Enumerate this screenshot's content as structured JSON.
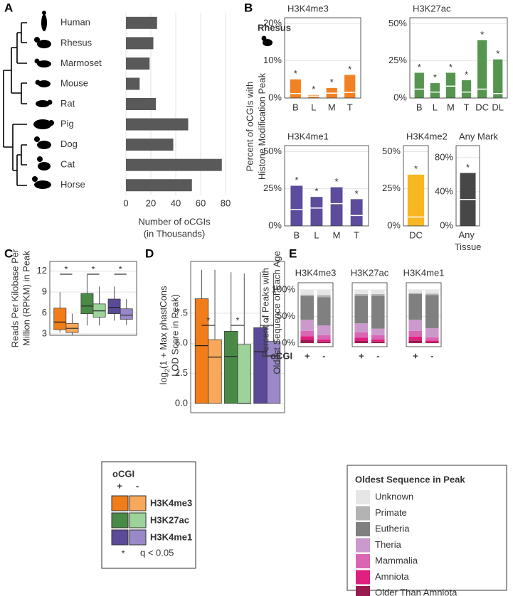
{
  "chart_data": [
    {
      "type": "bar",
      "panel": "A",
      "orientation": "horizontal",
      "categories": [
        "Human",
        "Rhesus",
        "Marmoset",
        "Mouse",
        "Rat",
        "Pig",
        "Dog",
        "Cat",
        "Horse"
      ],
      "values": [
        25,
        22,
        19,
        11,
        24,
        50,
        38,
        77,
        53
      ],
      "color": "#595959",
      "xlim": [
        -4,
        84
      ],
      "xticks": [
        0,
        20,
        40,
        60,
        80
      ],
      "grid": true,
      "x_label": [
        "Number of oCGIs",
        "(in Thousands)"
      ]
    },
    {
      "type": "bar",
      "panel": "B",
      "annotation": "Rhesus",
      "y_label": [
        "Percent of oCGIs with",
        "Histone Modification Peak"
      ],
      "title": "H3K4me3",
      "color": "#f28123",
      "categories": [
        "B",
        "L",
        "M",
        "T"
      ],
      "values": [
        5,
        0.8,
        2.7,
        6.2
      ],
      "expected": [
        1.2,
        0.5,
        1.3,
        1.5
      ],
      "significance": [
        "*",
        "*",
        "*",
        "*"
      ],
      "ylim": [
        0,
        21.5
      ],
      "yticks": [
        {
          "value": 0,
          "label": "0%"
        },
        {
          "value": 10,
          "label": "10%"
        },
        {
          "value": 20,
          "label": "20%"
        }
      ],
      "grid": true
    },
    {
      "type": "bar",
      "title": "H3K27ac",
      "color": "#55954f",
      "categories": [
        "B",
        "L",
        "M",
        "T",
        "DC",
        "DL"
      ],
      "values": [
        17,
        10,
        17,
        12,
        39,
        26
      ],
      "expected": [
        6,
        4,
        8,
        4,
        6,
        3
      ],
      "significance": [
        "*",
        "*",
        "*",
        "*",
        "*",
        "*"
      ],
      "ylim": [
        0,
        54
      ],
      "yticks": [
        {
          "value": 0,
          "label": "0%"
        },
        {
          "value": 25,
          "label": "25%"
        },
        {
          "value": 50,
          "label": "50%"
        }
      ],
      "grid": true
    },
    {
      "type": "bar",
      "title": "H3K4me1",
      "color": "#5d4c9c",
      "categories": [
        "B",
        "L",
        "M",
        "T"
      ],
      "values": [
        27,
        19.5,
        26,
        18
      ],
      "expected": [
        11,
        12,
        15,
        7
      ],
      "significance": [
        "*",
        "*",
        "*",
        "*"
      ],
      "ylim": [
        0,
        54
      ],
      "yticks": [
        {
          "value": 0,
          "label": "0%"
        },
        {
          "value": 25,
          "label": "25%"
        },
        {
          "value": 50,
          "label": "50%"
        }
      ],
      "grid": true
    },
    {
      "type": "bar",
      "title": "H3K4me2",
      "color": "#f7b722",
      "categories": [
        "DC"
      ],
      "values": [
        34.5
      ],
      "expected": [
        6
      ],
      "significance": [
        "*"
      ],
      "ylim": [
        0,
        54
      ],
      "yticks": [
        {
          "value": 0,
          "label": "0%"
        },
        {
          "value": 25,
          "label": "25%"
        },
        {
          "value": 50,
          "label": "50%"
        }
      ],
      "grid": true
    },
    {
      "type": "bar",
      "title": "Any Mark",
      "color": "#474747",
      "categories": [
        "Any Tissue"
      ],
      "values": [
        62
      ],
      "expected": [
        31
      ],
      "significance": [
        "*"
      ],
      "ylim": [
        0,
        94
      ],
      "yticks": [
        {
          "value": 0,
          "label": "0%"
        },
        {
          "value": 40,
          "label": "40%"
        },
        {
          "value": 80,
          "label": "80%"
        }
      ],
      "grid": true
    },
    {
      "type": "box",
      "panel": "C",
      "y_label": [
        "Reads Per Kilobase Per",
        "Million (RPKM) in Peak"
      ],
      "ylim": [
        2.8,
        13.4
      ],
      "yticks": [
        3,
        6,
        9,
        12
      ],
      "grid": true,
      "boxes": [
        {
          "color": "#f07c1a",
          "low": 3.2,
          "q1": 3.6,
          "median": 4.7,
          "q3": 6.7,
          "high": 9
        },
        {
          "color": "#f7a85a",
          "low": 2.8,
          "q1": 3.2,
          "median": 3.8,
          "q3": 4.5,
          "high": 5.9
        },
        {
          "color": "#4a8a47",
          "low": 4.2,
          "q1": 5.9,
          "median": 7.0,
          "q3": 8.8,
          "high": 11.5
        },
        {
          "color": "#9dd39a",
          "low": 4.2,
          "q1": 5.4,
          "median": 6.3,
          "q3": 7.3,
          "high": 9.8
        },
        {
          "color": "#5b4a97",
          "low": 4.9,
          "q1": 5.9,
          "median": 6.8,
          "q3": 8.0,
          "high": 9.8
        },
        {
          "color": "#9a88c8",
          "low": 4.3,
          "q1": 5.1,
          "median": 5.7,
          "q3": 6.6,
          "high": 8.0
        }
      ],
      "significance": [
        "*",
        "*",
        "*"
      ],
      "legend": {
        "title": "oCGI",
        "levels": [
          "+",
          "-"
        ],
        "entries": [
          {
            "name": "H3K4me3",
            "colors": [
              "#f07c1a",
              "#f7a85a"
            ]
          },
          {
            "name": "H3K27ac",
            "colors": [
              "#4a8a47",
              "#9dd39a"
            ]
          },
          {
            "name": "H3K4me1",
            "colors": [
              "#5b4a97",
              "#9a88c8"
            ]
          }
        ],
        "note_symbol": "*",
        "note": "q < 0.05"
      }
    },
    {
      "type": "box",
      "panel": "D",
      "y_label": {
        "line1": [
          "log",
          "2",
          "(1 + Max phastCons"
        ],
        "line2": "LOD Score in Peak)"
      },
      "ylim": [
        -0.77,
        11.8
      ],
      "yticks": [
        {
          "value": 0,
          "label": "0.0"
        },
        2.5,
        {
          "value": 5,
          "label": "5.0"
        },
        7.5
      ],
      "grid": true,
      "boxes": [
        {
          "color": "#f07c1a",
          "low": 0,
          "q1": 0,
          "median": 4.8,
          "q3": 8.7,
          "high": 11.1
        },
        {
          "color": "#f7a85a",
          "low": 0,
          "q1": 0,
          "median": 3.85,
          "q3": 5.3,
          "high": 11.1
        },
        {
          "color": "#4a8a47",
          "low": 0,
          "q1": 0,
          "median": 3.9,
          "q3": 6.0,
          "high": 10.9
        },
        {
          "color": "#9dd39a",
          "low": 0,
          "q1": 0,
          "median": 0,
          "q3": 4.9,
          "high": 10.8
        },
        {
          "color": "#5b4a97",
          "low": 0,
          "q1": 0,
          "median": 4.3,
          "q3": 6.3,
          "high": 10.9
        },
        {
          "color": "#9a88c8",
          "low": 0,
          "q1": 0,
          "median": 3.95,
          "q3": 5.15,
          "high": 10.8
        }
      ],
      "significance": [
        "*",
        "*",
        "*"
      ]
    },
    {
      "type": "stacked_bar",
      "panel": "E",
      "y_label": [
        "Percent of Peaks with",
        "Oldest Sequence of Each Age"
      ],
      "ylim": [
        -6.7,
        113.3
      ],
      "yticks": [
        {
          "value": 0,
          "label": "0%"
        },
        {
          "value": 50,
          "label": "50%"
        },
        {
          "value": 100,
          "label": "100%"
        }
      ],
      "grid": true,
      "facets": [
        {
          "title": "H3K4me3",
          "color": "#f08a2c"
        },
        {
          "title": "H3K27ac",
          "color": "#4f944a"
        },
        {
          "title": "H3K4me1",
          "color": "#5d4c9c"
        }
      ],
      "categories": [
        "+",
        "-",
        "+",
        "-",
        "+",
        "-"
      ],
      "x_title": "oCGI",
      "legend_title": "Oldest Sequence in Peak",
      "series": [
        {
          "name": "Unknown",
          "color": "#e6e6e6",
          "values": [
            9,
            10,
            8,
            8,
            6,
            7
          ]
        },
        {
          "name": "Primate",
          "color": "#b3b3b3",
          "values": [
            3,
            4,
            3,
            3,
            2,
            3
          ]
        },
        {
          "name": "Eutheria",
          "color": "#808080",
          "values": [
            44,
            53,
            52,
            62,
            48,
            62
          ]
        },
        {
          "name": "Theria",
          "color": "#cc99cc",
          "values": [
            21,
            18,
            17,
            12,
            21,
            17
          ]
        },
        {
          "name": "Mammalia",
          "color": "#d966b3",
          "values": [
            10,
            8,
            10,
            8,
            11,
            6
          ]
        },
        {
          "name": "Amniota",
          "color": "#e0207f",
          "values": [
            7,
            4,
            6,
            4,
            7,
            3
          ]
        },
        {
          "name": "Older Than Amniota",
          "color": "#991b4f",
          "values": [
            6,
            3,
            4,
            3,
            5,
            2
          ]
        }
      ]
    }
  ]
}
